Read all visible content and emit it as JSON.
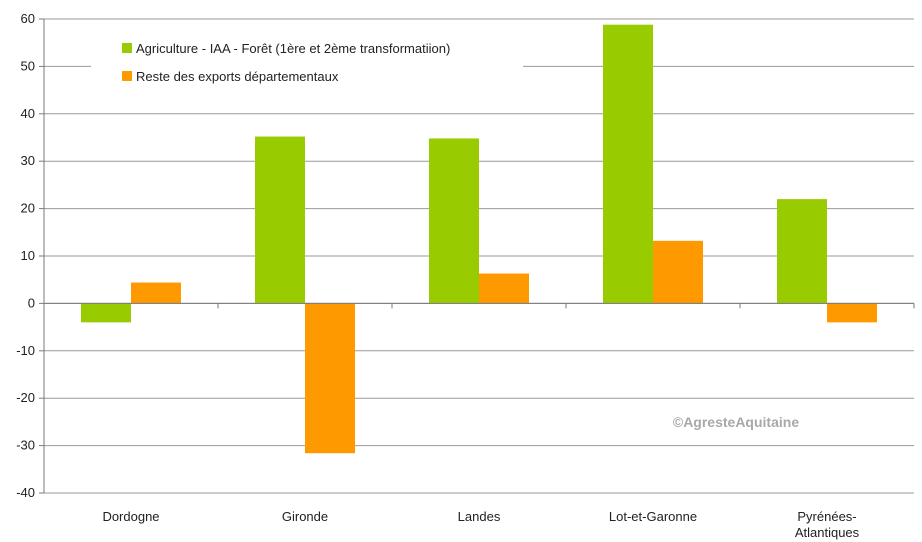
{
  "chart_data": {
    "type": "bar",
    "categories": [
      "Dordogne",
      "Gironde",
      "Landes",
      "Lot-et-Garonne",
      "Pyrénées-Atlantiques"
    ],
    "category_lines": [
      [
        "Dordogne"
      ],
      [
        "Gironde"
      ],
      [
        "Landes"
      ],
      [
        "Lot-et-Garonne"
      ],
      [
        "Pyrénées-",
        "Atlantiques"
      ]
    ],
    "series": [
      {
        "name": "Agriculture - IAA - Forêt (1ère et 2ème transformatiion)",
        "color": "#99cc00",
        "values": [
          -4,
          35.2,
          34.8,
          58.8,
          22
        ]
      },
      {
        "name": "Reste des exports départementaux",
        "color": "#ff9900",
        "values": [
          4.4,
          -31.6,
          6.3,
          13.2,
          -4
        ]
      }
    ],
    "ylim": [
      -40,
      60
    ],
    "yticks": [
      -40,
      -30,
      -20,
      -10,
      0,
      10,
      20,
      30,
      40,
      50,
      60
    ],
    "grid": true,
    "legend_position": "top-left",
    "title": "",
    "xlabel": "",
    "ylabel": ""
  },
  "watermark": "©AgresteAquitaine"
}
